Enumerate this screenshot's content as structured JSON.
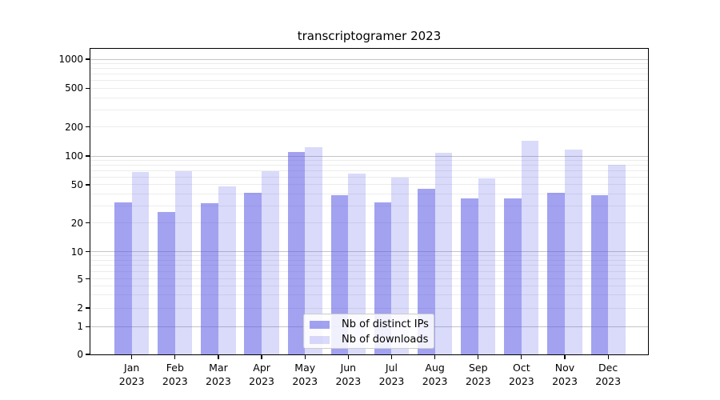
{
  "title": "transcriptogramer 2023",
  "chart_data": {
    "type": "bar",
    "title": "transcriptogramer 2023",
    "categories": [
      "Jan 2023",
      "Feb 2023",
      "Mar 2023",
      "Apr 2023",
      "May 2023",
      "Jun 2023",
      "Jul 2023",
      "Aug 2023",
      "Sep 2023",
      "Oct 2023",
      "Nov 2023",
      "Dec 2023"
    ],
    "series": [
      {
        "name": "Nb of distinct IPs",
        "color": "rgba(85,85,230,0.55)",
        "values": [
          33,
          26,
          32,
          41,
          110,
          39,
          33,
          45,
          36,
          36,
          41,
          39
        ]
      },
      {
        "name": "Nb of downloads",
        "color": "rgba(85,85,230,0.22)",
        "values": [
          68,
          70,
          48,
          69,
          123,
          65,
          59,
          108,
          58,
          144,
          117,
          81
        ]
      }
    ],
    "xlabel": "",
    "ylabel": "",
    "yscale": "symlog",
    "yticks": [
      0,
      1,
      2,
      5,
      10,
      20,
      50,
      100,
      200,
      500,
      1000
    ],
    "ylim": [
      0,
      1300
    ],
    "grid": true,
    "legend_position": "lower center"
  }
}
